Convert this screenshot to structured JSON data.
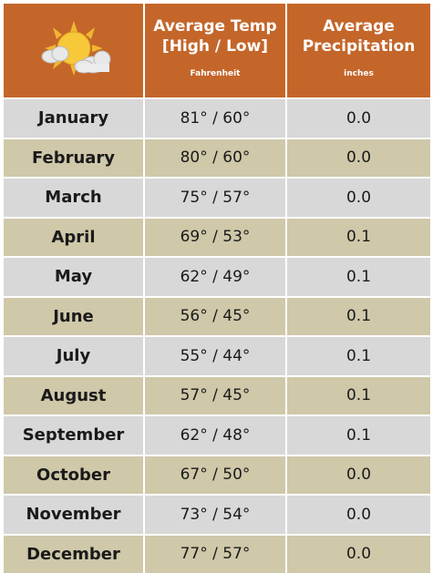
{
  "header": {
    "icon": "sun-cloud-icon",
    "temp_title_line1": "Average Temp",
    "temp_title_line2": "[High / Low]",
    "temp_unit": "Fahrenheit",
    "precip_title_line1": "Average",
    "precip_title_line2": "Precipitation",
    "precip_unit": "inches"
  },
  "rows": [
    {
      "month": "January",
      "temp": "81° / 60°",
      "precip": "0.0"
    },
    {
      "month": "February",
      "temp": "80° / 60°",
      "precip": "0.0"
    },
    {
      "month": "March",
      "temp": "75° / 57°",
      "precip": "0.0"
    },
    {
      "month": "April",
      "temp": "69° / 53°",
      "precip": "0.1"
    },
    {
      "month": "May",
      "temp": "62° / 49°",
      "precip": "0.1"
    },
    {
      "month": "June",
      "temp": "56° / 45°",
      "precip": "0.1"
    },
    {
      "month": "July",
      "temp": "55° / 44°",
      "precip": "0.1"
    },
    {
      "month": "August",
      "temp": "57° / 45°",
      "precip": "0.1"
    },
    {
      "month": "September",
      "temp": "62° / 48°",
      "precip": "0.1"
    },
    {
      "month": "October",
      "temp": "67° / 50°",
      "precip": "0.0"
    },
    {
      "month": "November",
      "temp": "73° / 54°",
      "precip": "0.0"
    },
    {
      "month": "December",
      "temp": "77° / 57°",
      "precip": "0.0"
    }
  ],
  "colors": {
    "header": "#c4662a",
    "row_gray": "#d8d8d8",
    "row_tan": "#cfc8a9"
  }
}
